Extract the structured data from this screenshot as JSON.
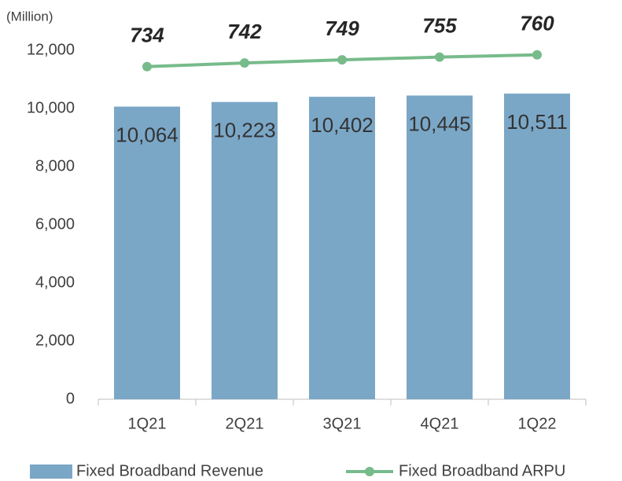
{
  "chart_data": {
    "type": "bar",
    "y_unit_label": "(Million)",
    "categories": [
      "1Q21",
      "2Q21",
      "3Q21",
      "4Q21",
      "1Q22"
    ],
    "series": [
      {
        "name": "Fixed Broadband Revenue",
        "type": "bar",
        "color": "#7ba7c7",
        "values": [
          10064,
          10223,
          10402,
          10445,
          10511
        ],
        "value_labels": [
          "10,064",
          "10,223",
          "10,402",
          "10,445",
          "10,511"
        ]
      },
      {
        "name": "Fixed Broadband ARPU",
        "type": "line",
        "color": "#77bb8b",
        "axis": "y2",
        "values": [
          734,
          742,
          749,
          755,
          760
        ]
      }
    ],
    "ylim": [
      0,
      12000
    ],
    "yticks": [
      {
        "value": 0,
        "label": "0"
      },
      {
        "value": 2000,
        "label": "2,000"
      },
      {
        "value": 4000,
        "label": "4,000"
      },
      {
        "value": 6000,
        "label": "6,000"
      },
      {
        "value": 8000,
        "label": "8,000"
      },
      {
        "value": 10000,
        "label": "10,000"
      },
      {
        "value": 12000,
        "label": "12,000"
      }
    ],
    "y2lim": [
      0,
      770
    ],
    "legend": "bottom"
  }
}
